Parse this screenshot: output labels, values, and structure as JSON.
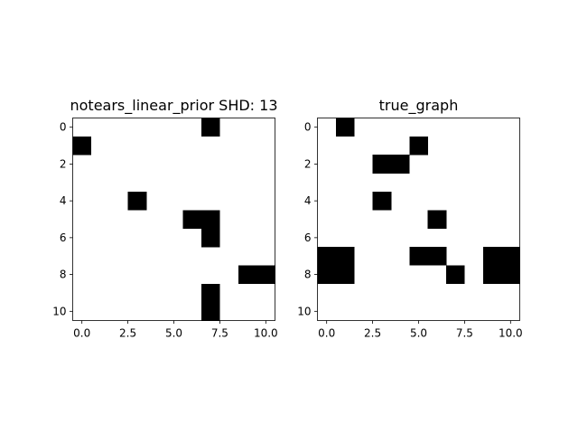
{
  "chart_data": [
    {
      "type": "heatmap",
      "title": "notears_linear_prior SHD: 13",
      "xlabel": "",
      "ylabel": "",
      "rows": 11,
      "cols": 11,
      "xlim": [
        -0.5,
        10.5
      ],
      "ylim": [
        10.5,
        -0.5
      ],
      "x_ticks": [
        0,
        2.5,
        5,
        7.5,
        10
      ],
      "x_tick_labels": [
        "0.0",
        "2.5",
        "5.0",
        "7.5",
        "10.0"
      ],
      "y_ticks": [
        0,
        2,
        4,
        6,
        8,
        10
      ],
      "y_tick_labels": [
        "0",
        "2",
        "4",
        "6",
        "8",
        "10"
      ],
      "grid": false,
      "colors": {
        "zero": "#ffffff",
        "one": "#000000"
      },
      "cells": [
        [
          0,
          7
        ],
        [
          1,
          0
        ],
        [
          4,
          3
        ],
        [
          5,
          6
        ],
        [
          5,
          7
        ],
        [
          6,
          7
        ],
        [
          8,
          9
        ],
        [
          8,
          10
        ],
        [
          9,
          7
        ],
        [
          10,
          7
        ]
      ]
    },
    {
      "type": "heatmap",
      "title": "true_graph",
      "xlabel": "",
      "ylabel": "",
      "rows": 11,
      "cols": 11,
      "xlim": [
        -0.5,
        10.5
      ],
      "ylim": [
        10.5,
        -0.5
      ],
      "x_ticks": [
        0,
        2.5,
        5,
        7.5,
        10
      ],
      "x_tick_labels": [
        "0.0",
        "2.5",
        "5.0",
        "7.5",
        "10.0"
      ],
      "y_ticks": [
        0,
        2,
        4,
        6,
        8,
        10
      ],
      "y_tick_labels": [
        "0",
        "2",
        "4",
        "6",
        "8",
        "10"
      ],
      "grid": false,
      "colors": {
        "zero": "#ffffff",
        "one": "#000000"
      },
      "cells": [
        [
          0,
          1
        ],
        [
          1,
          5
        ],
        [
          2,
          3
        ],
        [
          2,
          4
        ],
        [
          4,
          3
        ],
        [
          5,
          6
        ],
        [
          7,
          0
        ],
        [
          7,
          1
        ],
        [
          7,
          5
        ],
        [
          7,
          6
        ],
        [
          7,
          9
        ],
        [
          7,
          10
        ],
        [
          8,
          0
        ],
        [
          8,
          1
        ],
        [
          8,
          7
        ],
        [
          8,
          9
        ],
        [
          8,
          10
        ]
      ]
    }
  ]
}
